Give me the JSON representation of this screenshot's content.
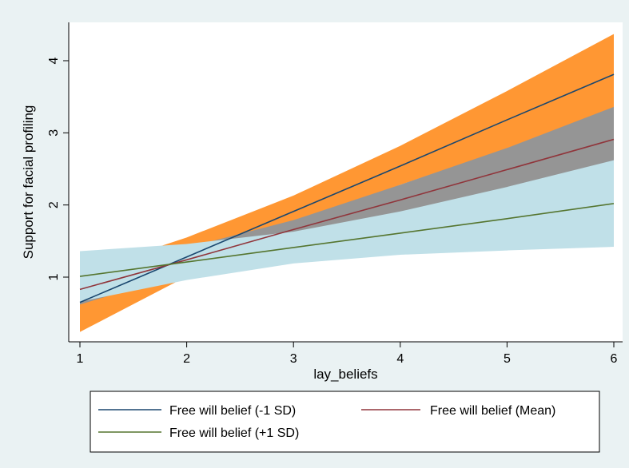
{
  "chart_data": {
    "type": "line",
    "title": "",
    "xlabel": "lay_beliefs",
    "ylabel": "Support for facial profiling",
    "xlim": [
      1,
      6
    ],
    "ylim": [
      0.2,
      4.5
    ],
    "x_ticks": [
      1,
      2,
      3,
      4,
      5,
      6
    ],
    "y_ticks": [
      1,
      2,
      3,
      4
    ],
    "grid": false,
    "legend_position": "bottom",
    "colors": {
      "plot_background": "#ffffff",
      "outer_background": "#eaf2f3",
      "band_minus1": "#ff9733",
      "band_mean": "#959595",
      "band_plus1": "#c0e0e8",
      "line_minus1": "#1a476f",
      "line_mean": "#90353b",
      "line_plus1": "#55752f"
    },
    "x": [
      1,
      2,
      3,
      4,
      5,
      6
    ],
    "series": [
      {
        "name": "Free will belief (-1 SD)",
        "key": "minus1",
        "values": [
          0.65,
          1.28,
          1.91,
          2.54,
          3.18,
          3.81
        ],
        "ci_lower": [
          0.24,
          1.01,
          1.7,
          2.28,
          2.78,
          3.27
        ],
        "ci_upper": [
          1.06,
          1.55,
          2.13,
          2.82,
          3.58,
          4.37
        ]
      },
      {
        "name": "Free will belief (Mean)",
        "key": "mean",
        "values": [
          0.83,
          1.24,
          1.66,
          2.07,
          2.49,
          2.91
        ],
        "ci_lower": [
          0.62,
          1.07,
          1.53,
          1.9,
          2.22,
          2.46
        ],
        "ci_upper": [
          1.04,
          1.41,
          1.79,
          2.28,
          2.79,
          3.36
        ]
      },
      {
        "name": "Free will belief (+1 SD)",
        "key": "plus1",
        "values": [
          1.01,
          1.21,
          1.41,
          1.61,
          1.81,
          2.02
        ],
        "ci_lower": [
          0.66,
          0.96,
          1.19,
          1.31,
          1.37,
          1.42
        ],
        "ci_upper": [
          1.36,
          1.46,
          1.63,
          1.91,
          2.25,
          2.62
        ]
      }
    ]
  }
}
